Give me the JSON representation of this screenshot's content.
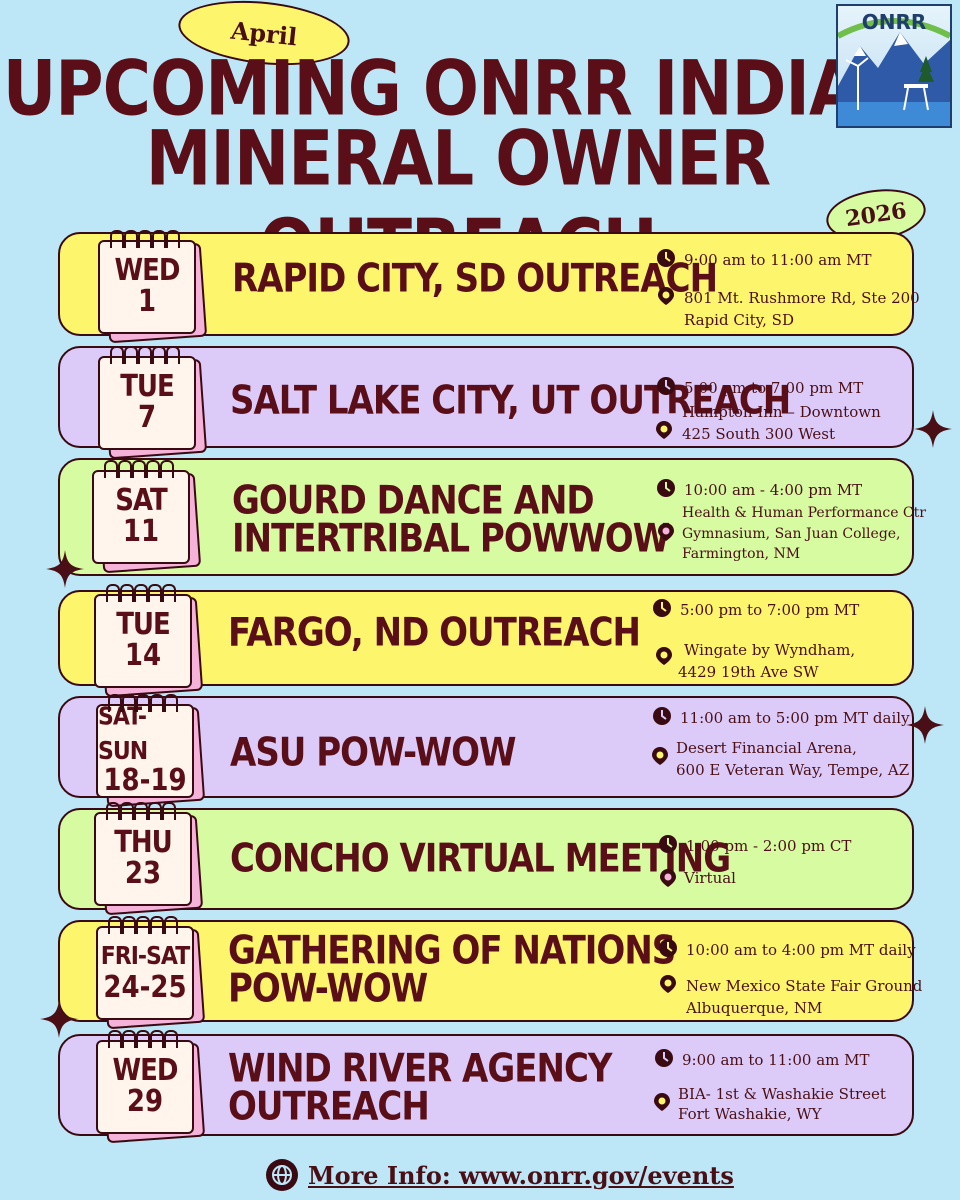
{
  "header": {
    "month": "April",
    "title_line1": "UPCOMING ONRR INDIAN",
    "title_line2": "MINERAL OWNER OUTREACH",
    "year": "2026",
    "logo_text": "ONRR"
  },
  "events": [
    {
      "day": "WED",
      "date": "1",
      "title": "RAPID CITY, SD OUTREACH",
      "time": "9:00 am to 11:00 am MT",
      "location": [
        "801 Mt. Rushmore Rd, Ste 200",
        "Rapid City, SD"
      ]
    },
    {
      "day": "TUE",
      "date": "7",
      "title": "SALT LAKE CITY, UT OUTREACH",
      "time": "5:00 pm to 7:00 pm MT",
      "location": [
        "Hampton Inn – Downtown",
        "425 South 300 West"
      ]
    },
    {
      "day": "SAT",
      "date": "11",
      "title": "GOURD DANCE AND INTERTRIBAL POWWOW",
      "title_line1": "GOURD DANCE AND",
      "title_line2": "INTERTRIBAL POWWOW",
      "time": "10:00 am - 4:00 pm MT",
      "location": [
        "Health & Human Performance Ctr",
        "Gymnasium, San Juan College,",
        "Farmington, NM"
      ]
    },
    {
      "day": "TUE",
      "date": "14",
      "title": "FARGO, ND OUTREACH",
      "time": "5:00 pm to 7:00 pm MT",
      "location": [
        "Wingate by Wyndham,",
        "4429 19th Ave SW"
      ]
    },
    {
      "day": "SAT-SUN",
      "date": "18-19",
      "title": "ASU POW-WOW",
      "time": "11:00 am to 5:00 pm MT daily",
      "location": [
        "Desert Financial Arena,",
        "600 E Veteran Way, Tempe, AZ"
      ]
    },
    {
      "day": "THU",
      "date": "23",
      "title": "CONCHO VIRTUAL MEETING",
      "time": "1:00 pm - 2:00 pm CT",
      "location": [
        "Virtual"
      ]
    },
    {
      "day": "FRI-SAT",
      "date": "24-25",
      "title": "GATHERING OF NATIONS POW-WOW",
      "title_line1": "GATHERING OF NATIONS",
      "title_line2": "POW-WOW",
      "time": "10:00 am to 4:00 pm MT daily",
      "location": [
        "New Mexico State Fair Ground",
        "Albuquerque, NM"
      ]
    },
    {
      "day": "WED",
      "date": "29",
      "title": "WIND RIVER AGENCY OUTREACH",
      "title_line1": "WIND RIVER AGENCY",
      "title_line2": "OUTREACH",
      "time": "9:00 am to 11:00 am MT",
      "location": [
        "BIA- 1st & Washakie Street",
        "Fort Washakie, WY"
      ]
    }
  ],
  "footer": {
    "text": "More Info: www.onrr.gov/events"
  },
  "colors": {
    "background": "#bde7f7",
    "yellow": "#fdf56b",
    "purple": "#dccbf9",
    "green": "#d7fba1",
    "ink": "#5a0f18",
    "pink": "#f6b3d9"
  }
}
